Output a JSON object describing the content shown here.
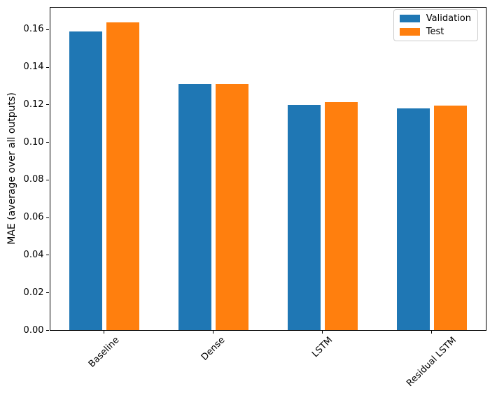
{
  "chart_data": {
    "type": "bar",
    "title": "",
    "xlabel": "",
    "ylabel": "MAE (average over all outputs)",
    "categories": [
      "Baseline",
      "Dense",
      "LSTM",
      "Residual LSTM"
    ],
    "series": [
      {
        "name": "Validation",
        "color": "#1f77b4",
        "values": [
          0.159,
          0.131,
          0.12,
          0.118
        ]
      },
      {
        "name": "Test",
        "color": "#ff7f0e",
        "values": [
          0.164,
          0.131,
          0.1215,
          0.1195
        ]
      }
    ],
    "ylim": [
      0,
      0.1722
    ],
    "yticks": [
      0.0,
      0.02,
      0.04,
      0.06,
      0.08,
      0.1,
      0.12,
      0.14,
      0.16
    ],
    "ytick_decimals": 2,
    "xtick_rotation_deg": 45,
    "grid": false,
    "legend_position": "upper right",
    "legend": {
      "entries": [
        "Validation",
        "Test"
      ]
    }
  }
}
